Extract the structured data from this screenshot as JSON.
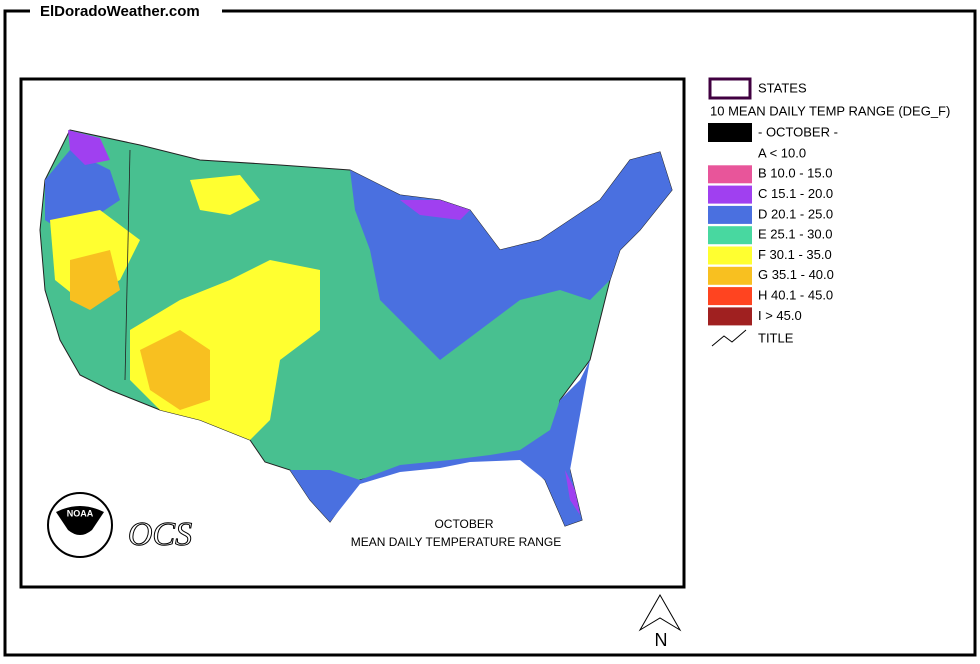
{
  "header": {
    "site": "ElDoradoWeather.com"
  },
  "legend": {
    "states": "STATES",
    "heading": "10 MEAN DAILY TEMP RANGE (DEG_F)",
    "month": "- OCTOBER -",
    "classes": [
      {
        "label": "A  < 10.0"
      },
      {
        "label": "B 10.0 - 15.0",
        "color": "#e8559a"
      },
      {
        "label": "C 15.1 - 20.0",
        "color": "#a040f0"
      },
      {
        "label": "D 20.1 - 25.0",
        "color": "#4a70e0"
      },
      {
        "label": "E 25.1 - 30.0",
        "color": "#48d8a0"
      },
      {
        "label": "F 30.1 - 35.0",
        "color": "#ffff30"
      },
      {
        "label": "G 35.1 - 40.0",
        "color": "#f8c020"
      },
      {
        "label": "H 40.1 - 45.0",
        "color": "#ff4420"
      },
      {
        "label": "I  > 45.0",
        "color": "#a02020"
      }
    ],
    "title": "TITLE"
  },
  "map": {
    "caption": [
      "OCTOBER",
      "MEAN DAILY TEMPERATURE RANGE"
    ],
    "logo": "NOAA",
    "ocs": "OCS",
    "north": "N"
  }
}
